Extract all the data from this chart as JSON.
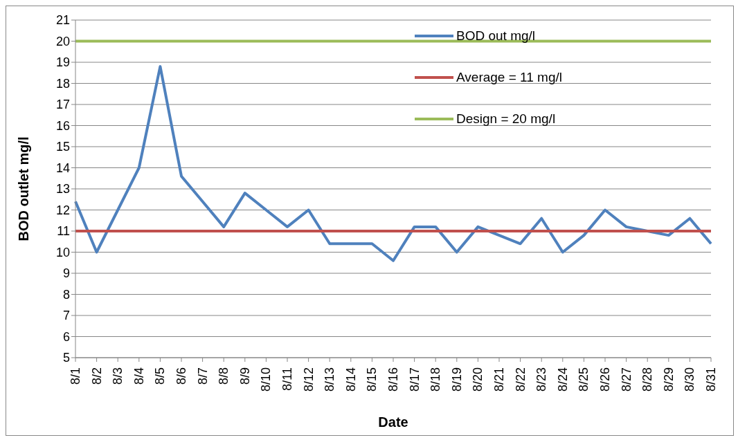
{
  "chart_data": {
    "type": "line",
    "xlabel": "Date",
    "ylabel": "BOD outlet mg/l",
    "categories": [
      "8/1",
      "8/2",
      "8/3",
      "8/4",
      "8/5",
      "8/6",
      "8/7",
      "8/8",
      "8/9",
      "8/10",
      "8/11",
      "8/12",
      "8/13",
      "8/14",
      "8/15",
      "8/16",
      "8/17",
      "8/18",
      "8/19",
      "8/20",
      "8/21",
      "8/22",
      "8/23",
      "8/24",
      "8/25",
      "8/26",
      "8/27",
      "8/28",
      "8/29",
      "8/30",
      "8/31"
    ],
    "series": [
      {
        "name": "BOD out mg/l",
        "color": "#4f81bd",
        "values": [
          12.4,
          10.0,
          12.0,
          14.0,
          18.8,
          13.6,
          12.4,
          11.2,
          12.8,
          12.0,
          11.2,
          12.0,
          10.4,
          10.4,
          10.4,
          9.6,
          11.2,
          11.2,
          10.0,
          11.2,
          10.8,
          10.4,
          11.6,
          10.0,
          10.8,
          12.0,
          11.2,
          11.0,
          10.8,
          11.6,
          10.4
        ]
      },
      {
        "name": "Average = 11 mg/l",
        "color": "#c0504d",
        "values": [
          11,
          11,
          11,
          11,
          11,
          11,
          11,
          11,
          11,
          11,
          11,
          11,
          11,
          11,
          11,
          11,
          11,
          11,
          11,
          11,
          11,
          11,
          11,
          11,
          11,
          11,
          11,
          11,
          11,
          11,
          11
        ]
      },
      {
        "name": "Design = 20 mg/l",
        "color": "#9bbb59",
        "values": [
          20,
          20,
          20,
          20,
          20,
          20,
          20,
          20,
          20,
          20,
          20,
          20,
          20,
          20,
          20,
          20,
          20,
          20,
          20,
          20,
          20,
          20,
          20,
          20,
          20,
          20,
          20,
          20,
          20,
          20,
          20
        ]
      }
    ],
    "ylim": [
      5,
      21
    ],
    "yticks": [
      5,
      6,
      7,
      8,
      9,
      10,
      11,
      12,
      13,
      14,
      15,
      16,
      17,
      18,
      19,
      20,
      21
    ],
    "grid": "y",
    "legend": "top right",
    "marker": "none",
    "line_style": "solid"
  }
}
